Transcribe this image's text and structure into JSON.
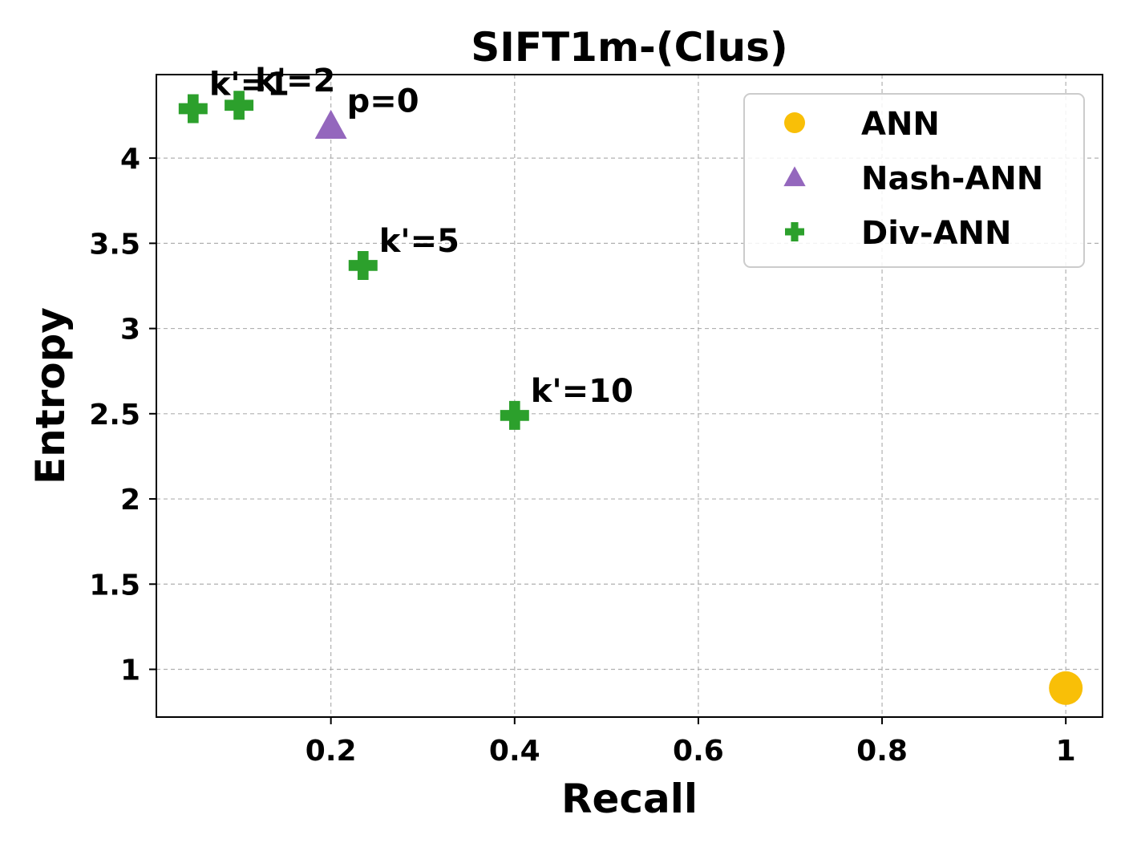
{
  "chart_data": {
    "type": "scatter",
    "title": "SIFT1m-(Clus)",
    "xlabel": "Recall",
    "ylabel": "Entropy",
    "xlim": [
      0.01,
      1.04
    ],
    "ylim": [
      0.72,
      4.49
    ],
    "x_ticks": [
      0.2,
      0.4,
      0.6,
      0.8,
      1.0
    ],
    "x_tick_labels": [
      "0.2",
      "0.4",
      "0.6",
      "0.8",
      "1"
    ],
    "y_ticks": [
      1.0,
      1.5,
      2.0,
      2.5,
      3.0,
      3.5,
      4.0
    ],
    "y_tick_labels": [
      "1",
      "1.5",
      "2",
      "2.5",
      "3",
      "3.5",
      "4"
    ],
    "grid": true,
    "legend_position": "top-right",
    "series": [
      {
        "name": "ANN",
        "marker": "circle",
        "color": "#f9bf07",
        "points": [
          {
            "x": 1.0,
            "y": 0.89,
            "label": ""
          }
        ]
      },
      {
        "name": "Nash-ANN",
        "marker": "triangle",
        "color": "#9467bd",
        "points": [
          {
            "x": 0.2,
            "y": 4.19,
            "label": "p=0"
          }
        ]
      },
      {
        "name": "Div-ANN",
        "marker": "plus",
        "color": "#2ca02c",
        "points": [
          {
            "x": 0.05,
            "y": 4.29,
            "label": "k'=1"
          },
          {
            "x": 0.1,
            "y": 4.31,
            "label": "k'=2"
          },
          {
            "x": 0.235,
            "y": 3.37,
            "label": "k'=5"
          },
          {
            "x": 0.4,
            "y": 2.49,
            "label": "k'=10"
          }
        ]
      }
    ]
  }
}
